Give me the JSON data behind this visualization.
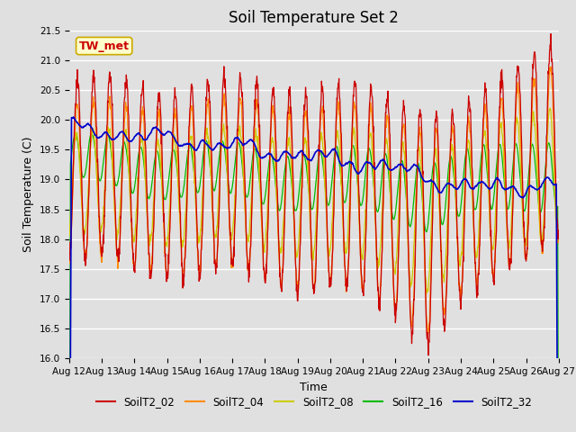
{
  "title": "Soil Temperature Set 2",
  "xlabel": "Time",
  "ylabel": "Soil Temperature (C)",
  "ylim": [
    16.0,
    21.5
  ],
  "x_tick_labels": [
    "Aug 12",
    "Aug 13",
    "Aug 14",
    "Aug 15",
    "Aug 16",
    "Aug 17",
    "Aug 18",
    "Aug 19",
    "Aug 20",
    "Aug 21",
    "Aug 22",
    "Aug 23",
    "Aug 24",
    "Aug 25",
    "Aug 26",
    "Aug 27"
  ],
  "series_colors": {
    "SoilT2_02": "#cc0000",
    "SoilT2_04": "#ff8c00",
    "SoilT2_08": "#cccc00",
    "SoilT2_16": "#00bb00",
    "SoilT2_32": "#0000cc"
  },
  "annotation_text": "TW_met",
  "annotation_box_color": "#ffffcc",
  "annotation_text_color": "#cc0000",
  "annotation_border_color": "#ccaa00",
  "background_color": "#e0e0e0",
  "grid_color": "#ffffff",
  "title_fontsize": 12,
  "axis_label_fontsize": 9,
  "tick_fontsize": 7.5,
  "legend_fontsize": 8.5
}
